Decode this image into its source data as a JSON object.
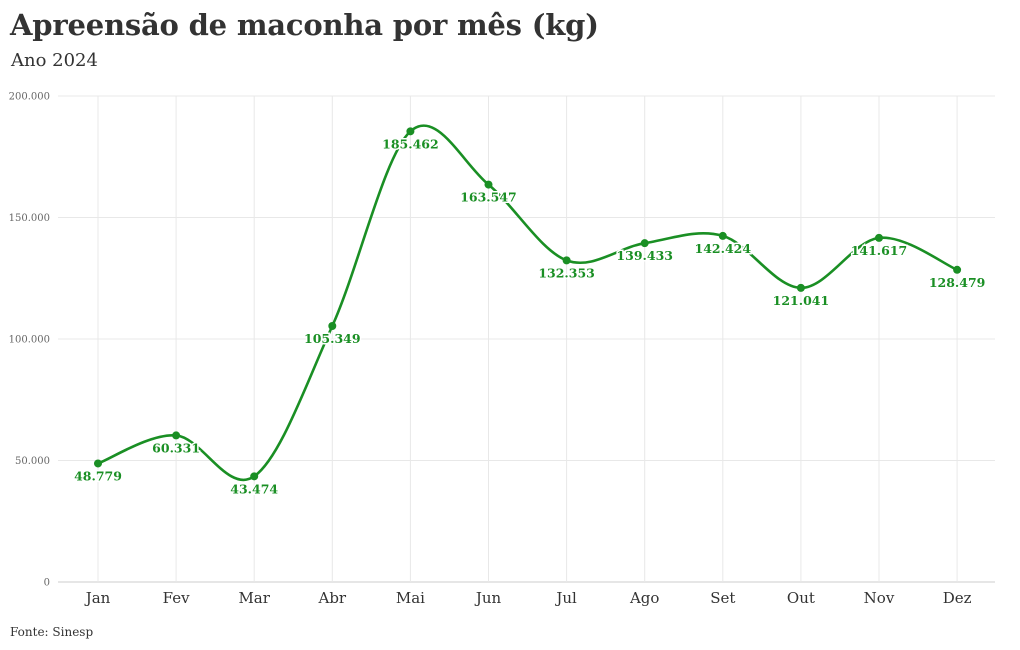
{
  "title": "Apreensão de maconha por mês (kg)",
  "subtitle": "Ano 2024",
  "source": "Fonte: Sinesp",
  "colors": {
    "series": "#1a8f24",
    "grid": "#e8e8e8",
    "axis": "#cccccc"
  },
  "chart_data": {
    "type": "line",
    "smooth": true,
    "categories": [
      "Jan",
      "Fev",
      "Mar",
      "Abr",
      "Mai",
      "Jun",
      "Jul",
      "Ago",
      "Set",
      "Out",
      "Nov",
      "Dez"
    ],
    "series": [
      {
        "values": [
          48779,
          60331,
          43474,
          105349,
          185462,
          163547,
          132353,
          139433,
          142424,
          121041,
          141617,
          128479
        ],
        "labels": [
          "48.779",
          "60.331",
          "43.474",
          "105.349",
          "185.462",
          "163.547",
          "132.353",
          "139.433",
          "142.424",
          "121.041",
          "141.617",
          "128.479"
        ]
      }
    ],
    "yticks": [
      0,
      50000,
      100000,
      150000,
      200000
    ],
    "ytick_labels": [
      "0",
      "50.000",
      "100.000",
      "150.000",
      "200.000"
    ],
    "ylim": [
      0,
      200000
    ],
    "grid": true,
    "legend": false
  }
}
